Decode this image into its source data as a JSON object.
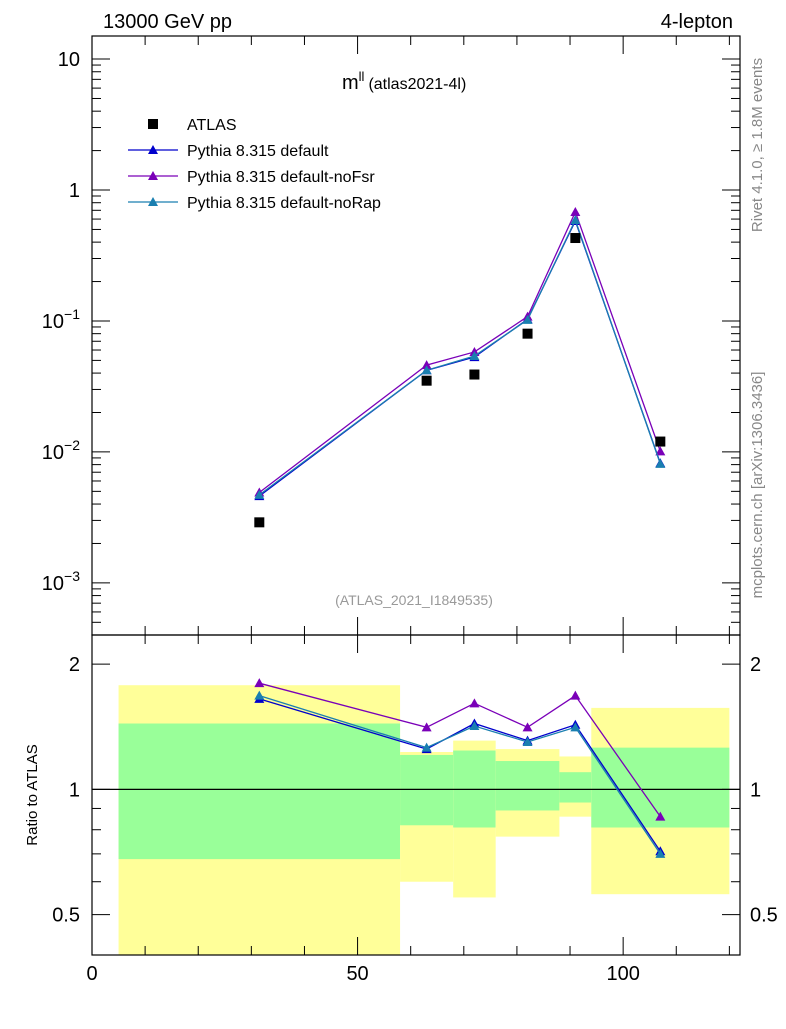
{
  "header": {
    "left": "13000 GeV pp",
    "right": "4-lepton"
  },
  "side_labels": {
    "rivet": "Rivet 4.1.0, ≥ 1.8M events",
    "mcplots": "mcplots.cern.ch [arXiv:1306.3436]"
  },
  "chart_data": [
    {
      "type": "scatter",
      "title_main": "m",
      "title_sup": "ll",
      "title_sub": "(atlas2021-4l)",
      "watermark": "(ATLAS_2021_I1849535)",
      "yscale": "log",
      "ylim": [
        0.0004,
        15
      ],
      "xlim": [
        0,
        122
      ],
      "y_ticks": [
        {
          "value": 10,
          "base": "10",
          "exp": ""
        },
        {
          "value": 1,
          "base": "1",
          "exp": ""
        },
        {
          "value": 0.1,
          "base": "10",
          "exp": "−1"
        },
        {
          "value": 0.01,
          "base": "10",
          "exp": "−2"
        },
        {
          "value": 0.001,
          "base": "10",
          "exp": "−3"
        }
      ],
      "legend": [
        {
          "name": "ATLAS",
          "color": "#000000",
          "marker": "square"
        },
        {
          "name": "Pythia 8.315 default",
          "color": "#0000cc",
          "marker": "triangle"
        },
        {
          "name": "Pythia 8.315 default-noFsr",
          "color": "#7a00b8",
          "marker": "triangle"
        },
        {
          "name": "Pythia 8.315 default-noRap",
          "color": "#1a7fb0",
          "marker": "triangle"
        }
      ],
      "x": [
        31.5,
        63,
        72,
        82,
        91,
        107
      ],
      "data": [
        0.0029,
        0.035,
        0.039,
        0.08,
        0.43,
        0.012
      ],
      "series": [
        {
          "name": "Pythia 8.315 default",
          "color": "#0000cc",
          "values": [
            0.0046,
            0.042,
            0.053,
            0.103,
            0.58,
            0.0082
          ]
        },
        {
          "name": "Pythia 8.315 default-noFsr",
          "color": "#7a00b8",
          "values": [
            0.0049,
            0.046,
            0.058,
            0.108,
            0.68,
            0.0101
          ]
        },
        {
          "name": "Pythia 8.315 default-noRap",
          "color": "#1a7fb0",
          "values": [
            0.0047,
            0.042,
            0.054,
            0.102,
            0.59,
            0.0081
          ]
        }
      ]
    },
    {
      "type": "scatter",
      "ylabel": "Ratio to ATLAS",
      "xlabel": "",
      "yscale": "log",
      "ylim": [
        0.4,
        2.35
      ],
      "xlim": [
        0,
        122
      ],
      "y_ticks": [
        {
          "value": 2,
          "label": "2"
        },
        {
          "value": 1,
          "label": "1"
        },
        {
          "value": 0.5,
          "label": "0.5"
        }
      ],
      "x_ticks": [
        {
          "value": 0,
          "label": "0"
        },
        {
          "value": 50,
          "label": "50"
        },
        {
          "value": 100,
          "label": "100"
        }
      ],
      "bands": [
        {
          "x0": 5,
          "x1": 58,
          "yellow": [
            0.4,
            1.78
          ],
          "green": [
            0.68,
            1.44
          ]
        },
        {
          "x0": 58,
          "x1": 68,
          "yellow": [
            0.6,
            1.23
          ],
          "green": [
            0.82,
            1.21
          ]
        },
        {
          "x0": 68,
          "x1": 76,
          "yellow": [
            0.55,
            1.31
          ],
          "green": [
            0.81,
            1.24
          ]
        },
        {
          "x0": 76,
          "x1": 88,
          "yellow": [
            0.77,
            1.25
          ],
          "green": [
            0.89,
            1.17
          ]
        },
        {
          "x0": 88,
          "x1": 94,
          "yellow": [
            0.86,
            1.2
          ],
          "green": [
            0.93,
            1.1
          ]
        },
        {
          "x0": 94,
          "x1": 120,
          "yellow": [
            0.56,
            1.57
          ],
          "green": [
            0.81,
            1.26
          ]
        }
      ],
      "x": [
        31.5,
        63,
        72,
        82,
        91,
        107
      ],
      "series": [
        {
          "name": "Pythia 8.315 default",
          "color": "#0000cc",
          "values": [
            1.65,
            1.25,
            1.44,
            1.31,
            1.43,
            0.71
          ]
        },
        {
          "name": "Pythia 8.315 default-noFsr",
          "color": "#7a00b8",
          "values": [
            1.8,
            1.41,
            1.61,
            1.41,
            1.68,
            0.86
          ]
        },
        {
          "name": "Pythia 8.315 default-noRap",
          "color": "#1a7fb0",
          "values": [
            1.68,
            1.26,
            1.42,
            1.3,
            1.41,
            0.7
          ]
        }
      ]
    }
  ]
}
